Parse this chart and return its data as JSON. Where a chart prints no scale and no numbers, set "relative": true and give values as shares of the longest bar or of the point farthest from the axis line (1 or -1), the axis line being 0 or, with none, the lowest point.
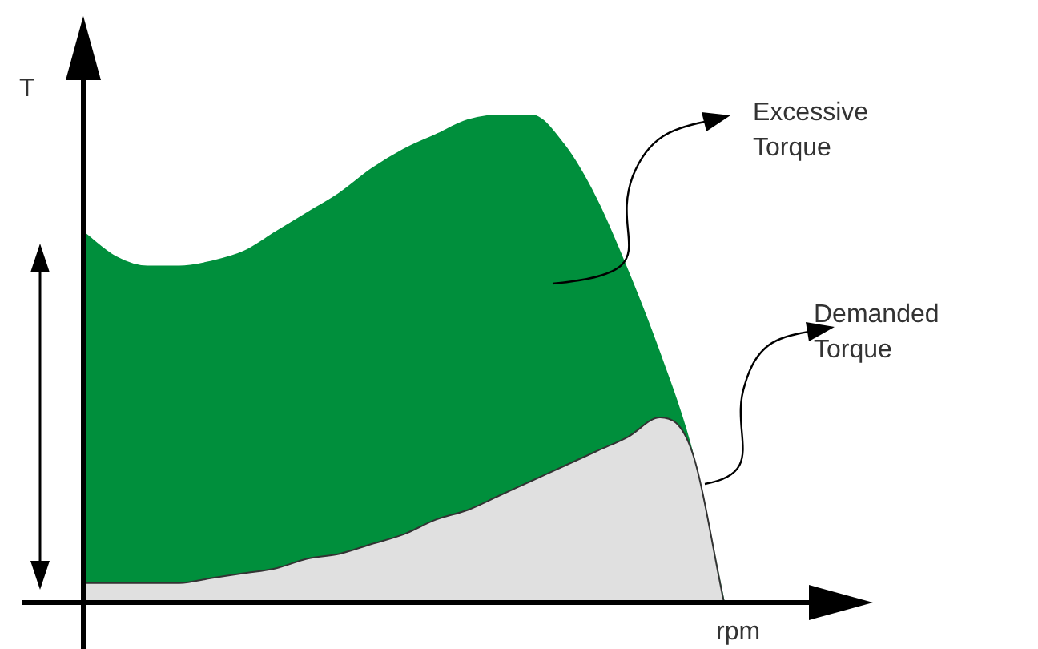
{
  "chart_data": {
    "type": "area",
    "relative": true,
    "xlabel": "rpm",
    "ylabel": "T",
    "legend": false,
    "categories": [
      null,
      null,
      null,
      null,
      null,
      null,
      null,
      null,
      null,
      null,
      null,
      null,
      null,
      null,
      null,
      null,
      null,
      null,
      null,
      null,
      null
    ],
    "series": [
      {
        "color": "#e0e0e0",
        "values": [
          0.04,
          0.04,
          0.04,
          0.04,
          0.05,
          0.06,
          0.07,
          0.09,
          0.1,
          0.12,
          0.14,
          0.17,
          0.19,
          0.22,
          0.25,
          0.28,
          0.31,
          0.34,
          0.38,
          0.31,
          0
        ]
      },
      {
        "color": "#008f3c",
        "values": [
          0.76,
          0.71,
          0.69,
          0.69,
          0.7,
          0.72,
          0.76,
          0.8,
          0.84,
          0.89,
          0.93,
          0.96,
          0.99,
          1,
          1,
          0.94,
          0.83,
          0.68,
          0.51,
          0.31,
          0
        ]
      }
    ],
    "annotations": [
      "Excessive Torque",
      "Demanded Torque"
    ]
  }
}
